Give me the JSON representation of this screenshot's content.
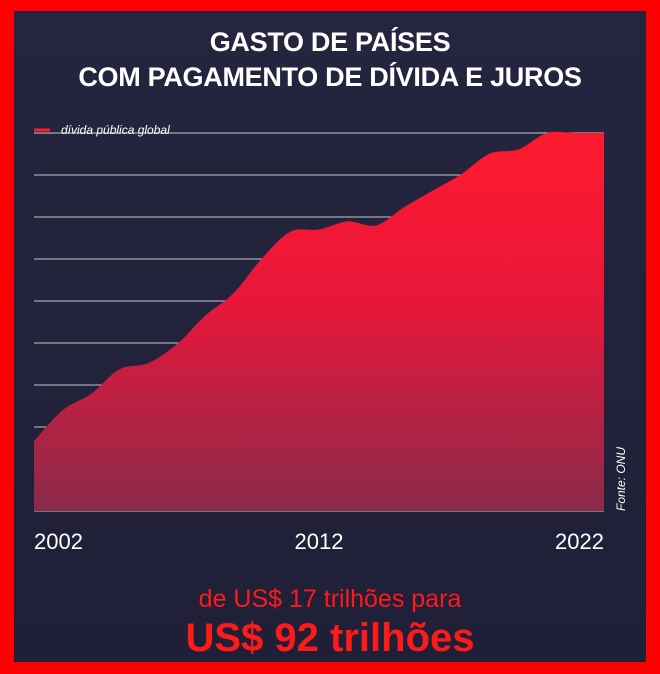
{
  "title_lines": [
    "GASTO DE PAÍSES",
    "COM PAGAMENTO DE DÍVIDA E JUROS"
  ],
  "colors": {
    "accent": "#ff1a2e",
    "background": "#23233d",
    "frame": "#ff0000"
  },
  "chart_data": {
    "type": "area",
    "title": "GASTO DE PAÍSES COM PAGAMENTO DE DÍVIDA E JUROS",
    "x_ticks": [
      "2002",
      "2012",
      "2022"
    ],
    "xlim": [
      2002,
      2022
    ],
    "ylim": [
      0,
      92
    ],
    "grid": true,
    "legend_position": "top-left",
    "series": [
      {
        "name": "dívida pública global",
        "x": [
          2002,
          2003,
          2004,
          2005,
          2006,
          2007,
          2008,
          2009,
          2010,
          2011,
          2012,
          2013,
          2014,
          2015,
          2016,
          2017,
          2018,
          2019,
          2020,
          2021,
          2022
        ],
        "values": [
          17,
          24.5,
          28.5,
          34.5,
          36,
          40.5,
          47.5,
          53,
          61.5,
          68,
          68.5,
          70.5,
          69.5,
          74,
          78,
          82,
          87,
          88,
          92,
          92,
          92
        ]
      }
    ],
    "source": "Fonte: ONU"
  },
  "footer": {
    "subtitle": "de US$ 17 trilhões para",
    "headline": "US$ 92 trilhões"
  }
}
